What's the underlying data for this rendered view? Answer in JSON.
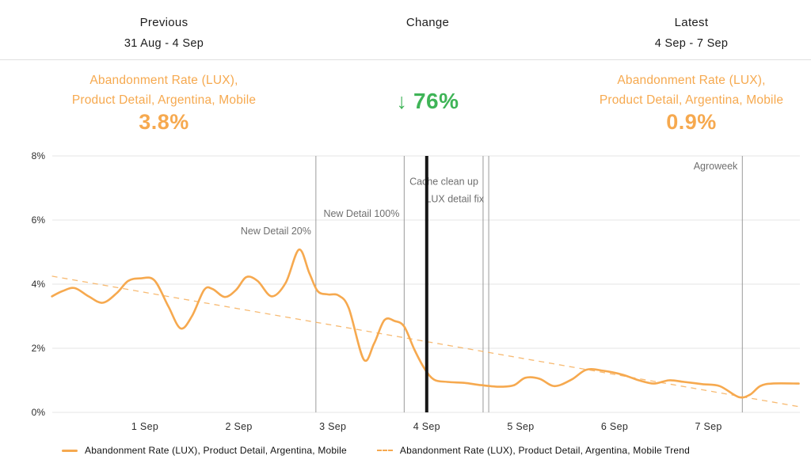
{
  "header": {
    "previous": {
      "title": "Previous",
      "range": "31 Aug - 4 Sep"
    },
    "change": {
      "title": "Change"
    },
    "latest": {
      "title": "Latest",
      "range": "4 Sep - 7 Sep"
    }
  },
  "metrics": {
    "previous": {
      "label_line1": "Abandonment Rate (LUX),",
      "label_line2": "Product Detail, Argentina, Mobile",
      "value": "3.8%"
    },
    "change": {
      "arrow": "↓",
      "value": "76%"
    },
    "latest": {
      "label_line1": "Abandonment Rate (LUX),",
      "label_line2": "Product Detail, Argentina, Mobile",
      "value": "0.9%"
    }
  },
  "colors": {
    "accent_orange": "#f6a94f",
    "accent_green": "#3fb457",
    "grid": "#e4e4e4",
    "event_line": "#9a9a9a",
    "marker": "#161616",
    "axis_text": "#2d2d2d",
    "annotation_text": "#6f6f6f"
  },
  "legend": [
    {
      "label": "Abandonment Rate (LUX), Product Detail, Argentina, Mobile",
      "style": "solid"
    },
    {
      "label": "Abandonment Rate (LUX), Product Detail, Argentina, Mobile Trend",
      "style": "dashed"
    }
  ],
  "chart_data": {
    "type": "line",
    "x_unit": "days since 31 Aug 00:00",
    "ylim": [
      0,
      8
    ],
    "yticks": [
      "0%",
      "2%",
      "4%",
      "6%",
      "8%"
    ],
    "xticks": [
      {
        "d": 1,
        "label": "1 Sep"
      },
      {
        "d": 2,
        "label": "2 Sep"
      },
      {
        "d": 3,
        "label": "3 Sep"
      },
      {
        "d": 4,
        "label": "4 Sep"
      },
      {
        "d": 5,
        "label": "5 Sep"
      },
      {
        "d": 6,
        "label": "6 Sep"
      },
      {
        "d": 7,
        "label": "7 Sep"
      }
    ],
    "series": [
      {
        "name": "Abandonment Rate (LUX), Product Detail, Argentina, Mobile",
        "style": "solid",
        "points": [
          [
            0.01,
            3.62
          ],
          [
            0.12,
            3.78
          ],
          [
            0.25,
            3.88
          ],
          [
            0.4,
            3.62
          ],
          [
            0.55,
            3.42
          ],
          [
            0.7,
            3.72
          ],
          [
            0.82,
            4.1
          ],
          [
            0.95,
            4.18
          ],
          [
            1.1,
            4.12
          ],
          [
            1.25,
            3.3
          ],
          [
            1.38,
            2.62
          ],
          [
            1.5,
            3.0
          ],
          [
            1.63,
            3.82
          ],
          [
            1.72,
            3.85
          ],
          [
            1.85,
            3.6
          ],
          [
            1.97,
            3.82
          ],
          [
            2.08,
            4.22
          ],
          [
            2.2,
            4.1
          ],
          [
            2.35,
            3.62
          ],
          [
            2.5,
            4.05
          ],
          [
            2.64,
            5.08
          ],
          [
            2.75,
            4.35
          ],
          [
            2.84,
            3.78
          ],
          [
            2.95,
            3.68
          ],
          [
            3.06,
            3.65
          ],
          [
            3.17,
            3.25
          ],
          [
            3.33,
            1.65
          ],
          [
            3.44,
            2.15
          ],
          [
            3.55,
            2.88
          ],
          [
            3.66,
            2.85
          ],
          [
            3.76,
            2.68
          ],
          [
            3.87,
            1.95
          ],
          [
            3.98,
            1.35
          ],
          [
            4.08,
            1.02
          ],
          [
            4.22,
            0.95
          ],
          [
            4.4,
            0.92
          ],
          [
            4.58,
            0.85
          ],
          [
            4.78,
            0.8
          ],
          [
            4.93,
            0.85
          ],
          [
            5.05,
            1.08
          ],
          [
            5.2,
            1.05
          ],
          [
            5.36,
            0.82
          ],
          [
            5.54,
            1.02
          ],
          [
            5.7,
            1.33
          ],
          [
            5.88,
            1.3
          ],
          [
            6.08,
            1.18
          ],
          [
            6.26,
            1.0
          ],
          [
            6.42,
            0.9
          ],
          [
            6.58,
            1.0
          ],
          [
            6.74,
            0.95
          ],
          [
            6.94,
            0.88
          ],
          [
            7.12,
            0.82
          ],
          [
            7.32,
            0.48
          ],
          [
            7.44,
            0.55
          ],
          [
            7.55,
            0.82
          ],
          [
            7.68,
            0.9
          ],
          [
            7.96,
            0.9
          ]
        ]
      },
      {
        "name": "Abandonment Rate (LUX), Product Detail, Argentina, Mobile Trend",
        "style": "dashed",
        "points": [
          [
            0.01,
            4.25
          ],
          [
            7.96,
            0.18
          ]
        ]
      }
    ],
    "events": [
      {
        "d": 2.82,
        "label": "New Detail 20%",
        "label_v": 5.55
      },
      {
        "d": 3.76,
        "label": "New Detail 100%",
        "label_v": 6.1
      },
      {
        "d": 4.6,
        "label": "Cache clean up",
        "label_v": 7.1
      },
      {
        "d": 4.66,
        "label": "LUX detail fix",
        "label_v": 6.55
      },
      {
        "d": 7.36,
        "label": "Agroweek",
        "label_v": 7.58
      }
    ],
    "marker": {
      "d": 4.0
    }
  }
}
